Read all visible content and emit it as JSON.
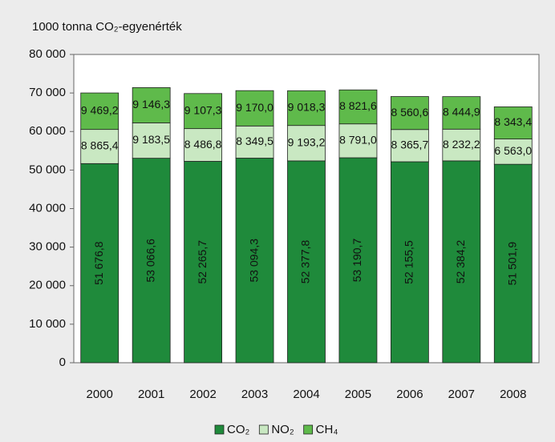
{
  "chart_data": {
    "type": "stacked_bar",
    "y_axis_label": "1000 tonna CO₂-egyenérték",
    "categories": [
      "2000",
      "2001",
      "2002",
      "2003",
      "2004",
      "2005",
      "2006",
      "2007",
      "2008"
    ],
    "series": [
      {
        "name": "CO₂",
        "color": "#1f8a3b",
        "values": [
          51676.8,
          53066.6,
          52265.7,
          53094.3,
          52377.8,
          53190.7,
          52155.5,
          52384.2,
          51501.9
        ],
        "value_labels": [
          "51 676,8",
          "53 066,6",
          "52 265,7",
          "53 094,3",
          "52 377,8",
          "53 190,7",
          "52 155,5",
          "52 384,2",
          "51 501,9"
        ]
      },
      {
        "name": "NO₂",
        "color": "#c9e8c2",
        "values": [
          8865.4,
          9183.5,
          8486.8,
          8349.5,
          9193.2,
          8791.0,
          8365.7,
          8232.2,
          6563.0
        ],
        "value_labels": [
          "8 865,4",
          "9 183,5",
          "8 486,8",
          "8 349,5",
          "9 193,2",
          "8 791,0",
          "8 365,7",
          "8 232,2",
          "6 563,0"
        ]
      },
      {
        "name": "CH₄",
        "color": "#5fba4b",
        "values": [
          9469.2,
          9146.3,
          9107.3,
          9170.0,
          9018.3,
          8821.6,
          8560.6,
          8444.9,
          8343.4
        ],
        "value_labels": [
          "9 469,2",
          "9 146,3",
          "9 107,3",
          "9 170,0",
          "9 018,3",
          "8 821,6",
          "8 560,6",
          "8 444,9",
          "8 343,4"
        ]
      }
    ],
    "ylim": [
      0,
      80000
    ],
    "yticks": [
      0,
      {
        "value": 10000,
        "label": "10 000"
      },
      {
        "value": 20000,
        "label": "20 000"
      },
      {
        "value": 30000,
        "label": "30 000"
      },
      {
        "value": 40000,
        "label": "40 000"
      },
      {
        "value": 50000,
        "label": "50 000"
      },
      {
        "value": 60000,
        "label": "60 000"
      },
      {
        "value": 70000,
        "label": "70 000"
      },
      {
        "value": 80000,
        "label": "80 000"
      }
    ],
    "grid": false
  }
}
